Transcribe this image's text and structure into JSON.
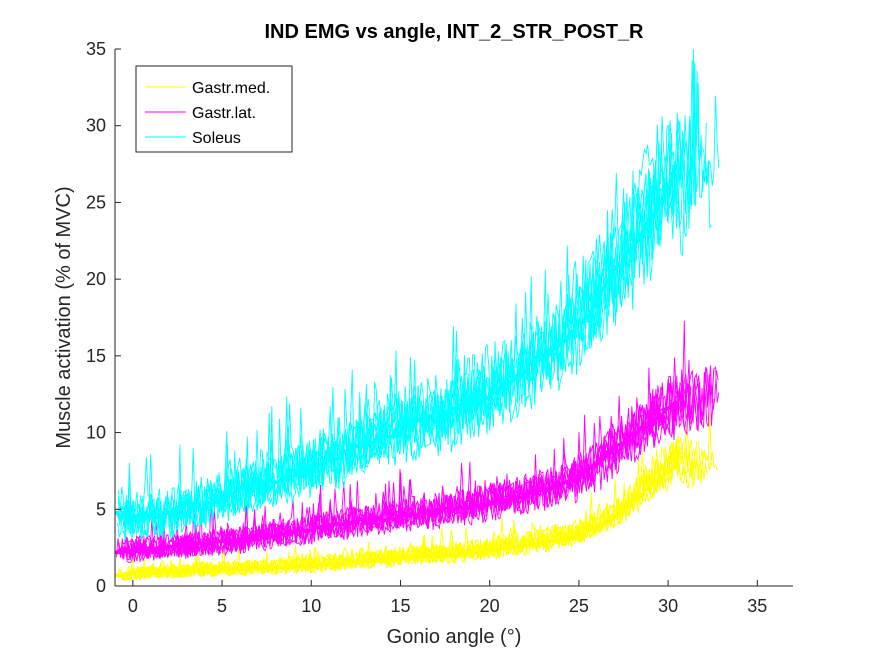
{
  "chart_data": {
    "type": "line",
    "title": "IND EMG vs angle, INT_2_STR_POST_R",
    "xlabel": "Gonio angle (°)",
    "ylabel": "Muscle activation (% of MVC)",
    "xlim": [
      -1,
      37
    ],
    "ylim": [
      0,
      35
    ],
    "xticks": [
      0,
      5,
      10,
      15,
      20,
      25,
      30,
      35
    ],
    "yticks": [
      0,
      5,
      10,
      15,
      20,
      25,
      30,
      35
    ],
    "grid": false,
    "legend_position": "top-left",
    "series": [
      {
        "name": "Gastr.med.",
        "color": "#ffff00",
        "mean": {
          "x": [
            -1,
            0,
            2,
            4,
            6,
            8,
            10,
            12,
            14,
            16,
            18,
            20,
            22,
            24,
            25,
            26,
            27,
            28,
            29,
            30,
            30.5,
            31,
            32,
            33
          ],
          "y": [
            0.7,
            0.8,
            0.9,
            1.0,
            1.1,
            1.2,
            1.3,
            1.5,
            1.7,
            1.9,
            2.0,
            2.3,
            2.6,
            3.0,
            3.3,
            3.8,
            4.5,
            5.5,
            6.5,
            7.5,
            7.8,
            7.0,
            7.5,
            8.0
          ]
        },
        "spread": 2.0,
        "reps": 8
      },
      {
        "name": "Gastr.lat.",
        "color": "#ff00ff",
        "mean": {
          "x": [
            -1,
            0,
            2,
            4,
            6,
            8,
            10,
            12,
            14,
            16,
            18,
            20,
            22,
            24,
            25,
            26,
            27,
            28,
            29,
            30,
            30.5,
            31,
            32,
            33
          ],
          "y": [
            2.3,
            2.4,
            2.5,
            2.7,
            3.0,
            3.3,
            3.7,
            4.1,
            4.4,
            4.7,
            5.0,
            5.4,
            5.9,
            6.6,
            7.0,
            8.0,
            9.0,
            9.8,
            10.6,
            11.5,
            12.0,
            11.5,
            12.0,
            12.5
          ]
        },
        "spread": 3.0,
        "reps": 8
      },
      {
        "name": "Soleus",
        "color": "#00ffff",
        "mean": {
          "x": [
            -1,
            0,
            2,
            4,
            6,
            8,
            10,
            12,
            14,
            16,
            18,
            20,
            22,
            24,
            25,
            26,
            27,
            28,
            29,
            30,
            30.5,
            31,
            32,
            33
          ],
          "y": [
            4.5,
            4.5,
            4.7,
            5.2,
            6.2,
            7.0,
            7.8,
            8.7,
            9.8,
            10.6,
            11.4,
            12.5,
            14.0,
            16.0,
            17.0,
            18.5,
            20.5,
            22.0,
            24.0,
            26.0,
            27.5,
            26.5,
            28.0,
            29.0
          ]
        },
        "spread": 5.5,
        "reps": 8
      }
    ]
  }
}
